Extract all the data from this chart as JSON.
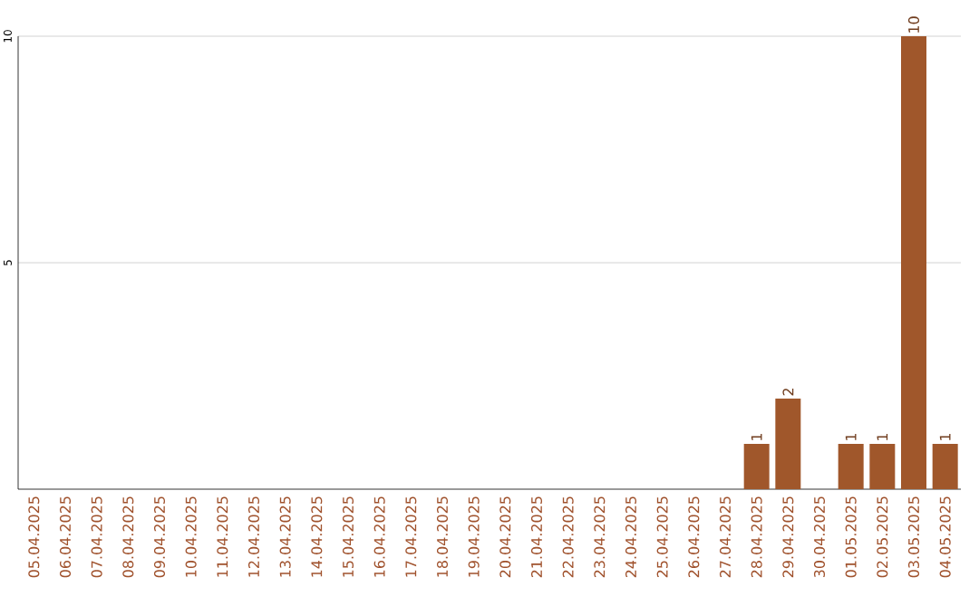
{
  "chart_data": {
    "type": "bar",
    "categories": [
      "05.04.2025",
      "06.04.2025",
      "07.04.2025",
      "08.04.2025",
      "09.04.2025",
      "10.04.2025",
      "11.04.2025",
      "12.04.2025",
      "13.04.2025",
      "14.04.2025",
      "15.04.2025",
      "16.04.2025",
      "17.04.2025",
      "18.04.2025",
      "19.04.2025",
      "20.04.2025",
      "21.04.2025",
      "22.04.2025",
      "23.04.2025",
      "24.04.2025",
      "25.04.2025",
      "26.04.2025",
      "27.04.2025",
      "28.04.2025",
      "29.04.2025",
      "30.04.2025",
      "01.05.2025",
      "02.05.2025",
      "03.05.2025",
      "04.05.2025"
    ],
    "values": [
      0,
      0,
      0,
      0,
      0,
      0,
      0,
      0,
      0,
      0,
      0,
      0,
      0,
      0,
      0,
      0,
      0,
      0,
      0,
      0,
      0,
      0,
      0,
      1,
      2,
      0,
      1,
      1,
      10,
      1
    ],
    "value_labels": [
      null,
      null,
      null,
      null,
      null,
      null,
      null,
      null,
      null,
      null,
      null,
      null,
      null,
      null,
      null,
      null,
      null,
      null,
      null,
      null,
      null,
      null,
      null,
      "1",
      "2",
      null,
      "1",
      "1",
      "10",
      "1"
    ],
    "color": "#a0572b",
    "ylim": [
      0,
      10
    ],
    "yticks": [
      5,
      10
    ],
    "grid": "y"
  }
}
